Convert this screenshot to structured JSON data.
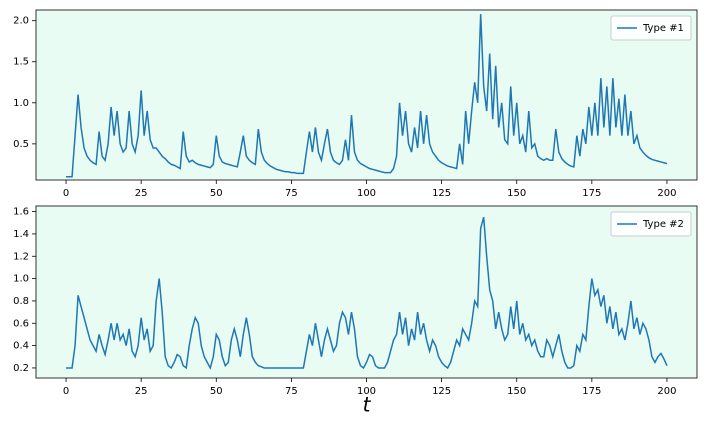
{
  "chart_data": [
    {
      "type": "line",
      "x": [
        0,
        1,
        2,
        3,
        4,
        5,
        6,
        7,
        8,
        9,
        10,
        11,
        12,
        13,
        14,
        15,
        16,
        17,
        18,
        19,
        20,
        21,
        22,
        23,
        24,
        25,
        26,
        27,
        28,
        29,
        30,
        31,
        32,
        33,
        34,
        35,
        36,
        37,
        38,
        39,
        40,
        41,
        42,
        43,
        44,
        45,
        46,
        47,
        48,
        49,
        50,
        51,
        52,
        53,
        54,
        55,
        56,
        57,
        58,
        59,
        60,
        61,
        62,
        63,
        64,
        65,
        66,
        67,
        68,
        69,
        70,
        71,
        72,
        73,
        74,
        75,
        76,
        77,
        78,
        79,
        80,
        81,
        82,
        83,
        84,
        85,
        86,
        87,
        88,
        89,
        90,
        91,
        92,
        93,
        94,
        95,
        96,
        97,
        98,
        99,
        100,
        101,
        102,
        103,
        104,
        105,
        106,
        107,
        108,
        109,
        110,
        111,
        112,
        113,
        114,
        115,
        116,
        117,
        118,
        119,
        120,
        121,
        122,
        123,
        124,
        125,
        126,
        127,
        128,
        129,
        130,
        131,
        132,
        133,
        134,
        135,
        136,
        137,
        138,
        139,
        140,
        141,
        142,
        143,
        144,
        145,
        146,
        147,
        148,
        149,
        150,
        151,
        152,
        153,
        154,
        155,
        156,
        157,
        158,
        159,
        160,
        161,
        162,
        163,
        164,
        165,
        166,
        167,
        168,
        169,
        170,
        171,
        172,
        173,
        174,
        175,
        176,
        177,
        178,
        179,
        180,
        181,
        182,
        183,
        184,
        185,
        186,
        187,
        188,
        189,
        190,
        191,
        192,
        193,
        194,
        195,
        196,
        197,
        198,
        199,
        200
      ],
      "series": [
        {
          "name": "Type #1",
          "color": "#1f77b4",
          "values": [
            0.1,
            0.1,
            0.1,
            0.6,
            1.1,
            0.7,
            0.45,
            0.35,
            0.3,
            0.27,
            0.25,
            0.65,
            0.35,
            0.3,
            0.5,
            0.95,
            0.6,
            0.9,
            0.5,
            0.4,
            0.45,
            0.9,
            0.5,
            0.4,
            0.6,
            1.15,
            0.6,
            0.9,
            0.55,
            0.45,
            0.45,
            0.4,
            0.35,
            0.32,
            0.28,
            0.25,
            0.24,
            0.22,
            0.2,
            0.65,
            0.35,
            0.28,
            0.3,
            0.27,
            0.25,
            0.24,
            0.23,
            0.22,
            0.21,
            0.25,
            0.6,
            0.35,
            0.28,
            0.26,
            0.25,
            0.24,
            0.23,
            0.22,
            0.4,
            0.6,
            0.35,
            0.3,
            0.27,
            0.25,
            0.68,
            0.4,
            0.3,
            0.26,
            0.23,
            0.21,
            0.19,
            0.18,
            0.17,
            0.16,
            0.16,
            0.15,
            0.15,
            0.14,
            0.14,
            0.14,
            0.4,
            0.65,
            0.4,
            0.7,
            0.4,
            0.3,
            0.5,
            0.68,
            0.4,
            0.3,
            0.27,
            0.25,
            0.3,
            0.55,
            0.3,
            0.85,
            0.4,
            0.3,
            0.26,
            0.24,
            0.22,
            0.2,
            0.19,
            0.18,
            0.17,
            0.16,
            0.15,
            0.15,
            0.15,
            0.2,
            0.35,
            1.0,
            0.6,
            0.9,
            0.5,
            0.4,
            0.7,
            0.45,
            0.9,
            0.5,
            0.85,
            0.5,
            0.4,
            0.35,
            0.3,
            0.27,
            0.25,
            0.23,
            0.22,
            0.21,
            0.2,
            0.5,
            0.25,
            0.9,
            0.5,
            0.9,
            1.25,
            1.0,
            2.08,
            1.2,
            0.9,
            1.6,
            0.8,
            1.45,
            0.7,
            1.0,
            0.55,
            0.5,
            1.2,
            0.6,
            1.0,
            0.5,
            0.6,
            0.4,
            0.9,
            0.45,
            0.5,
            0.35,
            0.32,
            0.3,
            0.32,
            0.3,
            0.3,
            0.68,
            0.4,
            0.32,
            0.28,
            0.25,
            0.23,
            0.22,
            0.6,
            0.35,
            0.68,
            0.5,
            0.95,
            0.6,
            1.0,
            0.6,
            1.3,
            0.7,
            1.2,
            0.6,
            1.3,
            0.7,
            1.05,
            0.6,
            1.1,
            0.6,
            0.9,
            0.5,
            0.6,
            0.45,
            0.4,
            0.36,
            0.33,
            0.31,
            0.3,
            0.29,
            0.28,
            0.27,
            0.26
          ]
        }
      ],
      "xlim": [
        -10,
        210
      ],
      "ylim": [
        0.06,
        2.13
      ],
      "xticks": [
        0,
        25,
        50,
        75,
        100,
        125,
        150,
        175,
        200
      ],
      "yticks": [
        0.5,
        {
          "value": 1.0,
          "label": "1.0"
        },
        1.5,
        {
          "value": 2.0,
          "label": "2.0"
        }
      ],
      "legend": "upper right"
    },
    {
      "type": "line",
      "x": [
        0,
        1,
        2,
        3,
        4,
        5,
        6,
        7,
        8,
        9,
        10,
        11,
        12,
        13,
        14,
        15,
        16,
        17,
        18,
        19,
        20,
        21,
        22,
        23,
        24,
        25,
        26,
        27,
        28,
        29,
        30,
        31,
        32,
        33,
        34,
        35,
        36,
        37,
        38,
        39,
        40,
        41,
        42,
        43,
        44,
        45,
        46,
        47,
        48,
        49,
        50,
        51,
        52,
        53,
        54,
        55,
        56,
        57,
        58,
        59,
        60,
        61,
        62,
        63,
        64,
        65,
        66,
        67,
        68,
        69,
        70,
        71,
        72,
        73,
        74,
        75,
        76,
        77,
        78,
        79,
        80,
        81,
        82,
        83,
        84,
        85,
        86,
        87,
        88,
        89,
        90,
        91,
        92,
        93,
        94,
        95,
        96,
        97,
        98,
        99,
        100,
        101,
        102,
        103,
        104,
        105,
        106,
        107,
        108,
        109,
        110,
        111,
        112,
        113,
        114,
        115,
        116,
        117,
        118,
        119,
        120,
        121,
        122,
        123,
        124,
        125,
        126,
        127,
        128,
        129,
        130,
        131,
        132,
        133,
        134,
        135,
        136,
        137,
        138,
        139,
        140,
        141,
        142,
        143,
        144,
        145,
        146,
        147,
        148,
        149,
        150,
        151,
        152,
        153,
        154,
        155,
        156,
        157,
        158,
        159,
        160,
        161,
        162,
        163,
        164,
        165,
        166,
        167,
        168,
        169,
        170,
        171,
        172,
        173,
        174,
        175,
        176,
        177,
        178,
        179,
        180,
        181,
        182,
        183,
        184,
        185,
        186,
        187,
        188,
        189,
        190,
        191,
        192,
        193,
        194,
        195,
        196,
        197,
        198,
        199,
        200
      ],
      "series": [
        {
          "name": "Type #2",
          "color": "#1f77b4",
          "values": [
            0.2,
            0.2,
            0.2,
            0.4,
            0.85,
            0.75,
            0.65,
            0.55,
            0.45,
            0.4,
            0.35,
            0.5,
            0.4,
            0.32,
            0.45,
            0.6,
            0.45,
            0.6,
            0.45,
            0.5,
            0.4,
            0.55,
            0.35,
            0.3,
            0.4,
            0.65,
            0.45,
            0.55,
            0.35,
            0.4,
            0.8,
            1.0,
            0.7,
            0.3,
            0.22,
            0.2,
            0.25,
            0.32,
            0.3,
            0.22,
            0.2,
            0.4,
            0.55,
            0.65,
            0.6,
            0.4,
            0.3,
            0.25,
            0.2,
            0.3,
            0.5,
            0.45,
            0.3,
            0.22,
            0.25,
            0.45,
            0.55,
            0.45,
            0.3,
            0.5,
            0.65,
            0.5,
            0.3,
            0.25,
            0.22,
            0.21,
            0.2,
            0.2,
            0.2,
            0.2,
            0.2,
            0.2,
            0.2,
            0.2,
            0.2,
            0.2,
            0.2,
            0.2,
            0.2,
            0.2,
            0.35,
            0.5,
            0.4,
            0.6,
            0.45,
            0.3,
            0.45,
            0.55,
            0.45,
            0.35,
            0.4,
            0.6,
            0.7,
            0.65,
            0.5,
            0.7,
            0.55,
            0.3,
            0.22,
            0.2,
            0.25,
            0.32,
            0.3,
            0.22,
            0.2,
            0.2,
            0.2,
            0.25,
            0.35,
            0.45,
            0.5,
            0.7,
            0.5,
            0.65,
            0.4,
            0.55,
            0.45,
            0.7,
            0.5,
            0.6,
            0.45,
            0.35,
            0.45,
            0.4,
            0.3,
            0.25,
            0.22,
            0.2,
            0.25,
            0.35,
            0.45,
            0.4,
            0.55,
            0.5,
            0.45,
            0.6,
            0.8,
            0.75,
            1.45,
            1.55,
            1.2,
            0.9,
            0.8,
            0.55,
            0.7,
            0.55,
            0.45,
            0.5,
            0.75,
            0.55,
            0.8,
            0.5,
            0.6,
            0.45,
            0.5,
            0.4,
            0.45,
            0.35,
            0.3,
            0.3,
            0.45,
            0.4,
            0.3,
            0.4,
            0.5,
            0.35,
            0.25,
            0.2,
            0.2,
            0.22,
            0.4,
            0.35,
            0.5,
            0.45,
            0.75,
            1.0,
            0.85,
            0.9,
            0.75,
            0.85,
            0.6,
            0.75,
            0.55,
            0.7,
            0.5,
            0.55,
            0.45,
            0.6,
            0.8,
            0.55,
            0.65,
            0.5,
            0.6,
            0.55,
            0.45,
            0.3,
            0.25,
            0.3,
            0.33,
            0.28,
            0.22
          ]
        }
      ],
      "xlim": [
        -10,
        210
      ],
      "ylim": [
        0.11,
        1.65
      ],
      "xticks": [
        0,
        25,
        50,
        75,
        100,
        125,
        150,
        175,
        200
      ],
      "yticks": [
        0.2,
        0.4,
        0.6,
        0.8,
        {
          "value": 1.0,
          "label": "1.0"
        },
        1.2,
        1.4,
        1.6
      ],
      "legend": "upper right",
      "xlabel": "t"
    }
  ]
}
